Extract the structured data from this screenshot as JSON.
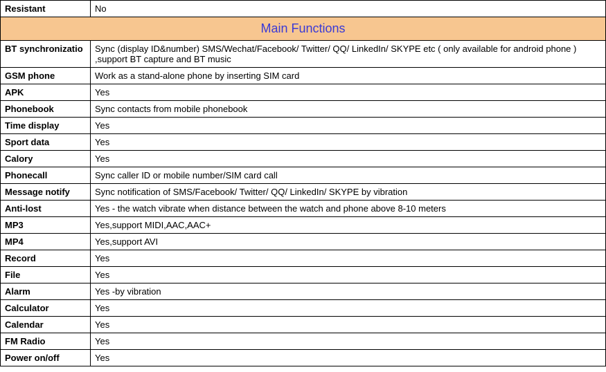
{
  "colors": {
    "header_bg": "#f7c690",
    "header_text": "#3a3ad6",
    "border": "#000000",
    "text": "#000000"
  },
  "top_row": {
    "label": "Resistant",
    "value": "No"
  },
  "section_title": "Main Functions",
  "rows": [
    {
      "label": "BT synchronizatio",
      "value": "Sync (display ID&number) SMS/Wechat/Facebook/ Twitter/ QQ/ LinkedIn/ SKYPE etc ( only available for android phone ) ,support BT capture and BT music"
    },
    {
      "label": "GSM phone",
      "value": "Work as a stand-alone phone by inserting SIM card"
    },
    {
      "label": "APK",
      "value": "Yes"
    },
    {
      "label": "Phonebook",
      "value": "Sync contacts from mobile phonebook"
    },
    {
      "label": "Time display",
      "value": "Yes"
    },
    {
      "label": "Sport data",
      "value": "Yes"
    },
    {
      "label": "Calory",
      "value": "Yes"
    },
    {
      "label": "Phonecall",
      "value": "Sync caller ID or mobile number/SIM card call"
    },
    {
      "label": "Message notify",
      "value": "Sync notification of SMS/Facebook/ Twitter/ QQ/ LinkedIn/ SKYPE by vibration"
    },
    {
      "label": "Anti-lost",
      "value": "Yes - the watch vibrate when distance between the watch and phone above 8-10 meters"
    },
    {
      "label": "MP3",
      "value": "Yes,support MIDI,AAC,AAC+"
    },
    {
      "label": "MP4",
      "value": "Yes,support AVI"
    },
    {
      "label": "Record",
      "value": "Yes"
    },
    {
      "label": "File",
      "value": "Yes"
    },
    {
      "label": "Alarm",
      "value": "Yes -by vibration"
    },
    {
      "label": "Calculator",
      "value": "Yes"
    },
    {
      "label": "Calendar",
      "value": "Yes"
    },
    {
      "label": "FM Radio",
      "value": "Yes"
    },
    {
      "label": "Power on/off",
      "value": "Yes"
    }
  ]
}
